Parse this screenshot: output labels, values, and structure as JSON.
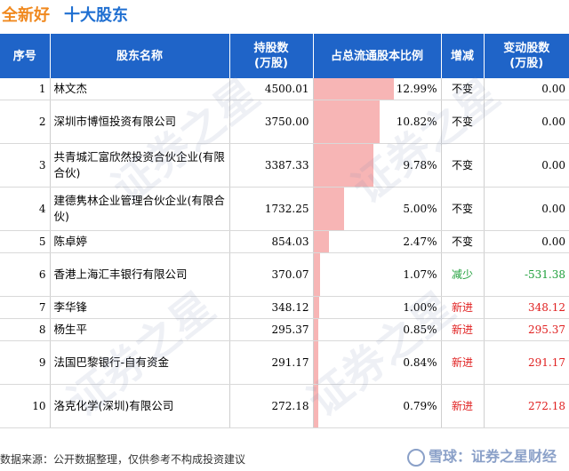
{
  "header": {
    "company": "全新好",
    "section": "十大股东"
  },
  "table": {
    "columns": [
      "序号",
      "股东名称",
      "持股数\n(万股)",
      "占总流通股本比例",
      "增减",
      "变动股数\n(万股)"
    ],
    "rows": [
      {
        "idx": "1",
        "name": "林文杰",
        "shares": "4500.01",
        "ratio": "12.99%",
        "ratio_value": 12.99,
        "change": "不变",
        "delta": "0.00",
        "status": "same"
      },
      {
        "idx": "2",
        "name": "深圳市博恒投资有限公司",
        "shares": "3750.00",
        "ratio": "10.82%",
        "ratio_value": 10.82,
        "change": "不变",
        "delta": "0.00",
        "status": "same"
      },
      {
        "idx": "3",
        "name": "共青城汇富欣然投资合伙企业(有限合伙)",
        "shares": "3387.33",
        "ratio": "9.78%",
        "ratio_value": 9.78,
        "change": "不变",
        "delta": "0.00",
        "status": "same"
      },
      {
        "idx": "4",
        "name": "建德隽林企业管理合伙企业(有限合伙)",
        "shares": "1732.25",
        "ratio": "5.00%",
        "ratio_value": 5.0,
        "change": "不变",
        "delta": "0.00",
        "status": "same"
      },
      {
        "idx": "5",
        "name": "陈卓婷",
        "shares": "854.03",
        "ratio": "2.47%",
        "ratio_value": 2.47,
        "change": "不变",
        "delta": "0.00",
        "status": "same"
      },
      {
        "idx": "6",
        "name": "香港上海汇丰银行有限公司",
        "shares": "370.07",
        "ratio": "1.07%",
        "ratio_value": 1.07,
        "change": "减少",
        "delta": "-531.38",
        "status": "down"
      },
      {
        "idx": "7",
        "name": "李华锋",
        "shares": "348.12",
        "ratio": "1.00%",
        "ratio_value": 1.0,
        "change": "新进",
        "delta": "348.12",
        "status": "new"
      },
      {
        "idx": "8",
        "name": "杨生平",
        "shares": "295.37",
        "ratio": "0.85%",
        "ratio_value": 0.85,
        "change": "新进",
        "delta": "295.37",
        "status": "new"
      },
      {
        "idx": "9",
        "name": "法国巴黎银行-自有资金",
        "shares": "291.17",
        "ratio": "0.84%",
        "ratio_value": 0.84,
        "change": "新进",
        "delta": "291.17",
        "status": "new"
      },
      {
        "idx": "10",
        "name": "洛克化学(深圳)有限公司",
        "shares": "272.18",
        "ratio": "0.79%",
        "ratio_value": 0.79,
        "change": "新进",
        "delta": "272.18",
        "status": "new"
      }
    ]
  },
  "footer": {
    "source": "数据来源：公开数据整理，仅供参考不构成投资建议"
  },
  "brand": {
    "text": "雪球：证券之星财经"
  },
  "watermark": "证券之星",
  "colors": {
    "header_bg": "#1f64c8",
    "bar": "#f6a8a8",
    "company": "#f0891f",
    "section": "#1f6fd1",
    "down": "#1e9f3a",
    "new": "#e02020"
  }
}
